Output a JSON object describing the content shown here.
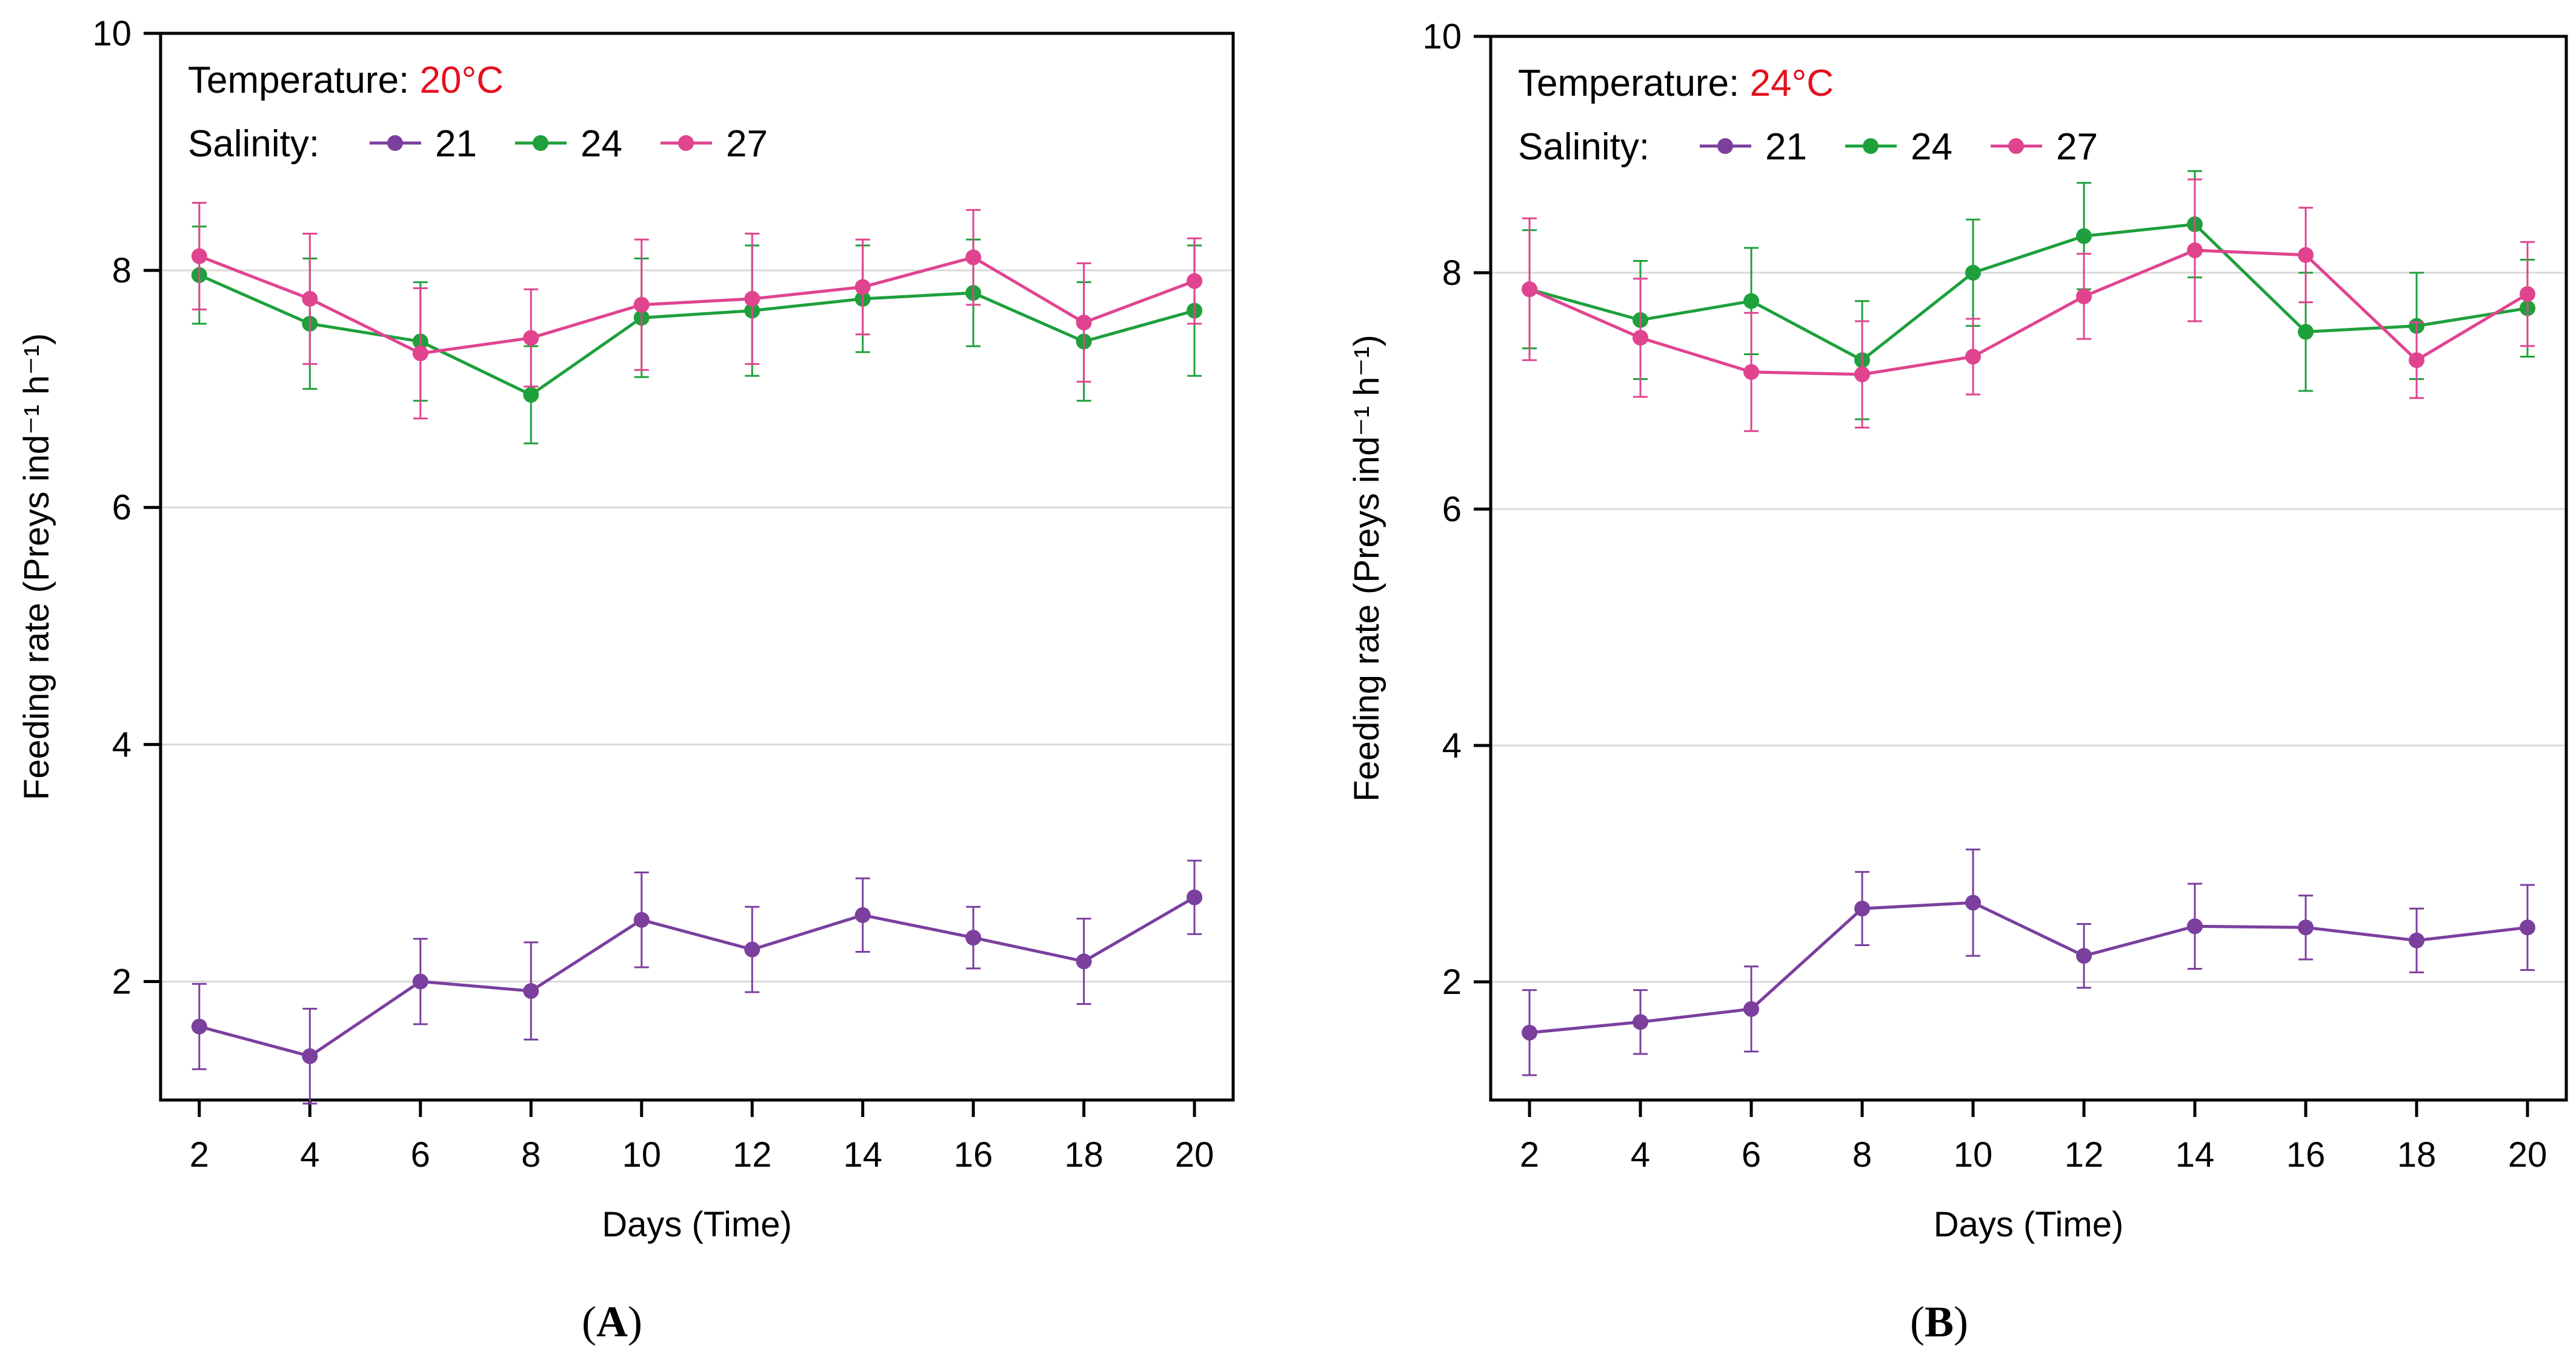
{
  "chart_data": [
    {
      "type": "line",
      "panel_label": "A",
      "title_prefix": "Temperature: ",
      "temperature": "20°C",
      "legend_title": "Salinity:",
      "xlabel": "Days (Time)",
      "ylabel": "Feeding rate (Preys ind⁻¹ h⁻¹)",
      "xlim": [
        1.3,
        20.7
      ],
      "ylim": [
        1.0,
        10.0
      ],
      "x": [
        2,
        4,
        6,
        8,
        10,
        12,
        14,
        16,
        18,
        20
      ],
      "xticks": [
        2,
        4,
        6,
        8,
        10,
        12,
        14,
        16,
        18,
        20
      ],
      "yticks": [
        2,
        4,
        6,
        8,
        10
      ],
      "grid_y": [
        2,
        4,
        6,
        8
      ],
      "series": [
        {
          "name": "21",
          "color": "#7B3F9E",
          "values": [
            1.62,
            1.37,
            2.0,
            1.92,
            2.52,
            2.27,
            2.56,
            2.37,
            2.17,
            2.71
          ],
          "errors": [
            0.36,
            0.4,
            0.36,
            0.41,
            0.4,
            0.36,
            0.31,
            0.26,
            0.36,
            0.31
          ]
        },
        {
          "name": "24",
          "color": "#1EA03C",
          "values": [
            7.96,
            7.55,
            7.4,
            6.95,
            7.6,
            7.66,
            7.76,
            7.81,
            7.4,
            7.66
          ],
          "errors": [
            0.41,
            0.55,
            0.5,
            0.41,
            0.5,
            0.55,
            0.45,
            0.45,
            0.5,
            0.55
          ]
        },
        {
          "name": "27",
          "color": "#E0448F",
          "values": [
            8.12,
            7.76,
            7.3,
            7.43,
            7.71,
            7.76,
            7.86,
            8.11,
            7.56,
            7.91
          ],
          "errors": [
            0.45,
            0.55,
            0.55,
            0.41,
            0.55,
            0.55,
            0.4,
            0.4,
            0.5,
            0.36
          ]
        }
      ]
    },
    {
      "type": "line",
      "panel_label": "B",
      "title_prefix": "Temperature: ",
      "temperature": "24°C",
      "legend_title": "Salinity:",
      "xlabel": "Days (Time)",
      "ylabel": "Feeding rate (Preys ind⁻¹ h⁻¹)",
      "xlim": [
        1.3,
        20.7
      ],
      "ylim": [
        1.0,
        10.0
      ],
      "x": [
        2,
        4,
        6,
        8,
        10,
        12,
        14,
        16,
        18,
        20
      ],
      "xticks": [
        2,
        4,
        6,
        8,
        10,
        12,
        14,
        16,
        18,
        20
      ],
      "yticks": [
        2,
        4,
        6,
        8,
        10
      ],
      "grid_y": [
        2,
        4,
        6,
        8
      ],
      "series": [
        {
          "name": "21",
          "color": "#7B3F9E",
          "values": [
            1.57,
            1.66,
            1.77,
            2.62,
            2.67,
            2.22,
            2.47,
            2.46,
            2.35,
            2.46
          ],
          "errors": [
            0.36,
            0.27,
            0.36,
            0.31,
            0.45,
            0.27,
            0.36,
            0.27,
            0.27,
            0.36
          ]
        },
        {
          "name": "24",
          "color": "#1EA03C",
          "values": [
            7.86,
            7.6,
            7.76,
            7.26,
            8.0,
            8.31,
            8.41,
            7.5,
            7.55,
            7.7
          ],
          "errors": [
            0.5,
            0.5,
            0.45,
            0.5,
            0.45,
            0.45,
            0.45,
            0.5,
            0.45,
            0.41
          ]
        },
        {
          "name": "27",
          "color": "#E0448F",
          "values": [
            7.86,
            7.45,
            7.16,
            7.14,
            7.29,
            7.8,
            8.19,
            8.15,
            7.26,
            7.82
          ],
          "errors": [
            0.6,
            0.5,
            0.5,
            0.45,
            0.32,
            0.36,
            0.6,
            0.4,
            0.32,
            0.44
          ]
        }
      ]
    }
  ]
}
